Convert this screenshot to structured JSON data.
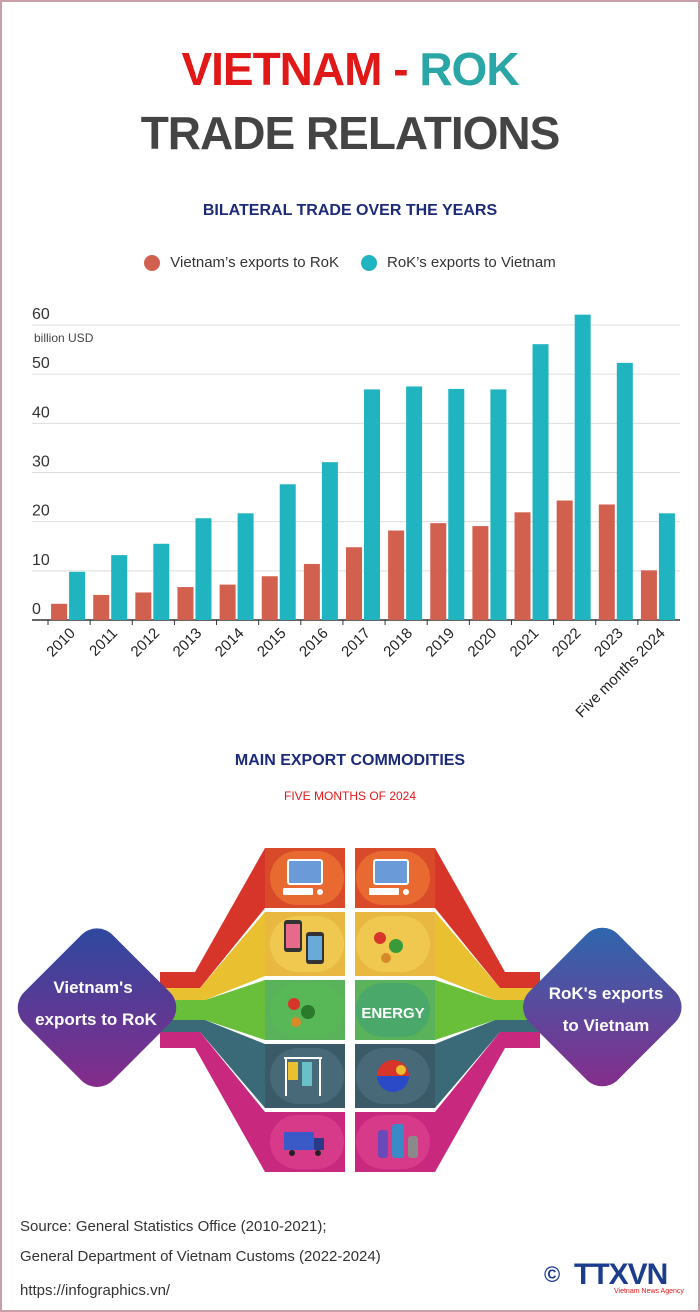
{
  "header": {
    "title_part1": "VIETNAM",
    "title_sep": " - ",
    "title_part2": "ROK",
    "title_line2": "TRADE RELATIONS"
  },
  "colors": {
    "vn_series": "#d2604f",
    "rok_series": "#1fb4bf",
    "accent_red": "#e01818",
    "accent_navy": "#1c2a7a"
  },
  "chart_data": {
    "type": "bar",
    "title": "BILATERAL TRADE OVER THE YEARS",
    "ylabel": "billion USD",
    "xlabel": "",
    "ylim": [
      0,
      60
    ],
    "yticks": [
      "0",
      "10",
      "20",
      "30",
      "40",
      "50",
      "60"
    ],
    "legend_position": "top",
    "categories": [
      "2010",
      "2011",
      "2012",
      "2013",
      "2014",
      "2015",
      "2016",
      "2017",
      "2018",
      "2019",
      "2020",
      "2021",
      "2022",
      "2023",
      "Five months 2024"
    ],
    "series": [
      {
        "name": "Vietnam’s exports to RoK",
        "values": [
          3.3,
          5.1,
          5.6,
          6.7,
          7.2,
          8.9,
          11.4,
          14.8,
          18.2,
          19.7,
          19.1,
          21.9,
          24.3,
          23.5,
          10.1
        ]
      },
      {
        "name": "RoK’s exports to Vietnam",
        "values": [
          9.8,
          13.2,
          15.5,
          20.7,
          21.7,
          27.6,
          32.1,
          46.9,
          47.5,
          47.0,
          46.9,
          56.1,
          62.1,
          52.3,
          21.7
        ]
      }
    ]
  },
  "commodities": {
    "title": "MAIN EXPORT COMMODITIES",
    "subtitle": "FIVE MONTHS OF 2024",
    "left_label_line1": "Vietnam's",
    "left_label_line2": "exports to RoK",
    "right_label_line1": "RoK's exports",
    "right_label_line2": "to Vietnam",
    "energy_text": "ENERGY"
  },
  "footer": {
    "source_line1": "Source: General Statistics Office (2010-2021);",
    "source_line2": "General Department of Vietnam Customs (2022-2024)",
    "website": "https://infographics.vn/",
    "logo_symbol": "©",
    "logo_text": "TTXVN",
    "logo_sub": "Vietnam News Agency"
  }
}
